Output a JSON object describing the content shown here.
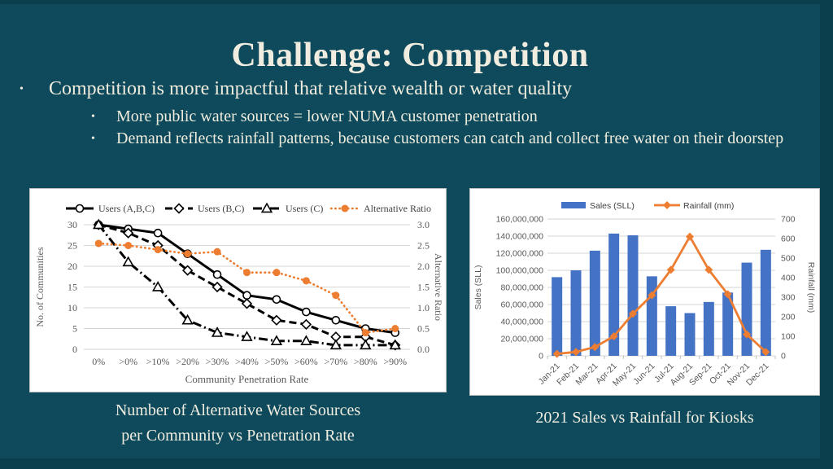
{
  "slide": {
    "title": "Challenge: Competition",
    "bullets": {
      "level1": "Competition is more impactful that relative wealth or water quality",
      "level2a": "More public water sources = lower NUMA customer penetration",
      "level2b": "Demand reflects rainfall patterns, because customers can catch and collect free water on their doorstep"
    },
    "captions": {
      "left_line1": "Number of Alternative Water Sources",
      "left_line2": "per Community vs Penetration Rate",
      "right": "2021 Sales vs Rainfall for Kiosks"
    }
  },
  "colors": {
    "background": "#0E4A5C",
    "border_strip": "#0B3F4E",
    "text_cream": "#F0EDE0",
    "excel_blue": "#4472C4",
    "excel_orange": "#ED7D31",
    "axis_text": "#595959",
    "gridline": "#D6D6D6",
    "chart_bg": "#FFFFFF"
  },
  "chart_data": [
    {
      "type": "line",
      "title": "",
      "categories": [
        "0%",
        ">0%",
        ">10%",
        ">20%",
        ">30%",
        ">40%",
        ">50%",
        ">60%",
        ">70%",
        ">80%",
        ">90%"
      ],
      "xlabel": "Community Penetration Rate",
      "ylabel_left": "No. of Communities",
      "ylabel_right": "Alternative Ratio",
      "ylim_left": [
        0,
        30
      ],
      "ytick_step_left": 5,
      "ylim_right": [
        0.0,
        3.0
      ],
      "ytick_step_right": 0.5,
      "grid": true,
      "legend_position": "top",
      "series": [
        {
          "name": "Users (A,B,C)",
          "axis": "left",
          "style": "solid",
          "marker": "circle-open",
          "color": "#000000",
          "values": [
            30,
            29,
            28,
            23,
            18,
            13,
            12,
            9,
            7,
            5,
            4
          ]
        },
        {
          "name": "Users (B,C)",
          "axis": "left",
          "style": "dashed",
          "marker": "diamond-open",
          "color": "#000000",
          "values": [
            30,
            28,
            25,
            19,
            15,
            11,
            7,
            6,
            3,
            3,
            1
          ]
        },
        {
          "name": "Users (C)",
          "axis": "left",
          "style": "dash-dot",
          "marker": "triangle-open",
          "color": "#000000",
          "values": [
            30,
            21,
            15,
            7,
            4,
            3,
            2,
            2,
            1,
            1,
            1
          ]
        },
        {
          "name": "Alternative Ratio",
          "axis": "right",
          "style": "dotted",
          "marker": "circle-filled",
          "color": "#ED7D31",
          "values": [
            2.55,
            2.5,
            2.4,
            2.3,
            2.35,
            1.85,
            1.85,
            1.65,
            1.3,
            0.4,
            0.5
          ]
        }
      ]
    },
    {
      "type": "bar-line",
      "title": "",
      "categories": [
        "Jan-21",
        "Feb-21",
        "Mar-21",
        "Apr-21",
        "May-21",
        "Jun-21",
        "Jul-21",
        "Aug-21",
        "Sep-21",
        "Oct-21",
        "Nov-21",
        "Dec-21"
      ],
      "xlabel": "",
      "ylabel_left": "Sales (SLL)",
      "ylabel_right": "Rainfall (mm)",
      "ylim_left": [
        0,
        160000000
      ],
      "ytick_step_left": 20000000,
      "ylim_right": [
        0,
        700
      ],
      "ytick_step_right": 100,
      "grid": true,
      "legend_position": "top",
      "series": [
        {
          "name": "Sales (SLL)",
          "type": "bar",
          "axis": "left",
          "color": "#4472C4",
          "values": [
            92000000,
            100000000,
            123000000,
            143000000,
            141000000,
            93000000,
            58000000,
            50000000,
            63000000,
            74000000,
            109000000,
            124000000
          ]
        },
        {
          "name": "Rainfall (mm)",
          "type": "line",
          "axis": "right",
          "color": "#ED7D31",
          "marker": "diamond-filled",
          "values": [
            10,
            20,
            45,
            100,
            215,
            310,
            440,
            610,
            440,
            315,
            110,
            20
          ]
        }
      ]
    }
  ]
}
